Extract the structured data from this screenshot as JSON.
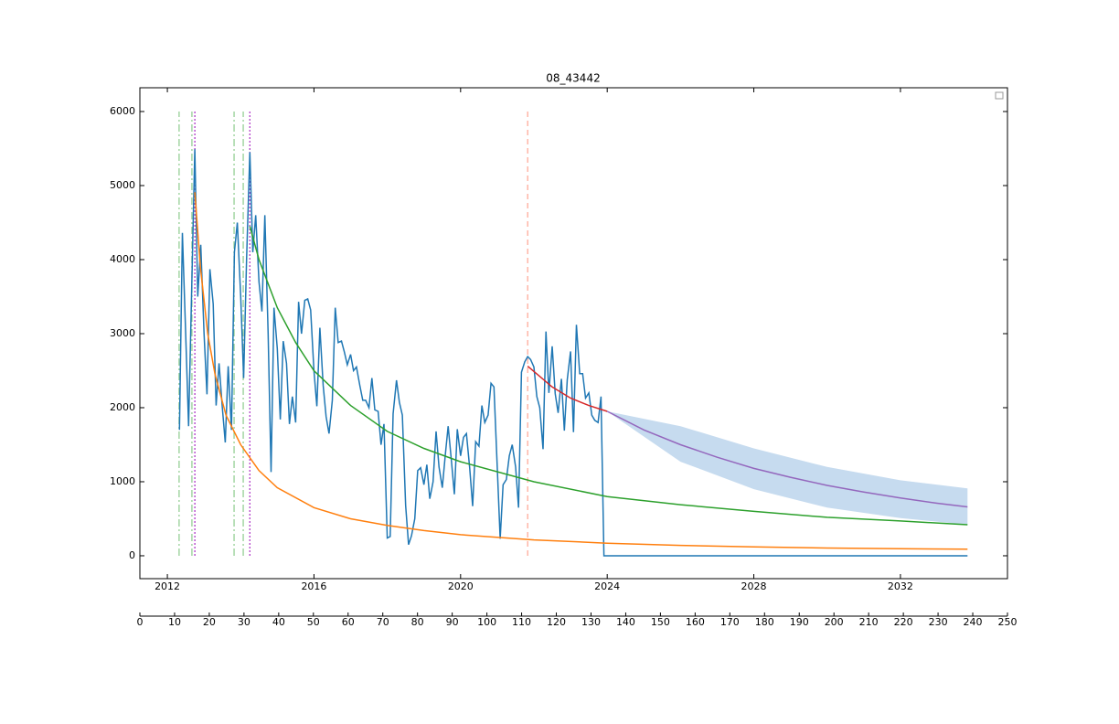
{
  "chart_data": {
    "type": "line",
    "title": "08_43442",
    "xlim": [
      2011.25,
      2034.92
    ],
    "xticks": [
      2012,
      2016,
      2020,
      2024,
      2028,
      2032
    ],
    "ylim": [
      -309,
      6321
    ],
    "yticks": [
      0,
      1000,
      2000,
      3000,
      4000,
      5000,
      6000
    ],
    "x2lim": [
      0,
      250
    ],
    "x2ticks": [
      0,
      10,
      20,
      30,
      40,
      50,
      60,
      70,
      80,
      90,
      100,
      110,
      120,
      130,
      140,
      150,
      160,
      170,
      180,
      190,
      200,
      210,
      220,
      230,
      240,
      250
    ],
    "legend": "upper right",
    "grid": false,
    "series": [
      {
        "color": "#1f77b4",
        "x": [
          2012.33,
          2012.41,
          2012.5,
          2012.58,
          2012.66,
          2012.75,
          2012.83,
          2012.91,
          2013.0,
          2013.08,
          2013.16,
          2013.25,
          2013.33,
          2013.41,
          2013.5,
          2013.58,
          2013.66,
          2013.75,
          2013.83,
          2013.91,
          2014.0,
          2014.08,
          2014.16,
          2014.25,
          2014.33,
          2014.41,
          2014.5,
          2014.58,
          2014.66,
          2014.75,
          2014.83,
          2014.91,
          2015.0,
          2015.08,
          2015.16,
          2015.25,
          2015.33,
          2015.41,
          2015.5,
          2015.58,
          2015.66,
          2015.75,
          2015.83,
          2015.91,
          2016.0,
          2016.08,
          2016.16,
          2016.25,
          2016.33,
          2016.41,
          2016.5,
          2016.58,
          2016.66,
          2016.75,
          2016.83,
          2016.91,
          2017.0,
          2017.08,
          2017.16,
          2017.25,
          2017.33,
          2017.41,
          2017.5,
          2017.58,
          2017.66,
          2017.75,
          2017.83,
          2017.91,
          2018.0,
          2018.08,
          2018.16,
          2018.25,
          2018.33,
          2018.41,
          2018.5,
          2018.58,
          2018.66,
          2018.75,
          2018.83,
          2018.91,
          2019.0,
          2019.08,
          2019.16,
          2019.25,
          2019.33,
          2019.41,
          2019.5,
          2019.58,
          2019.66,
          2019.75,
          2019.83,
          2019.91,
          2020.0,
          2020.08,
          2020.16,
          2020.25,
          2020.33,
          2020.41,
          2020.5,
          2020.58,
          2020.66,
          2020.75,
          2020.83,
          2020.91,
          2021.0,
          2021.08,
          2021.16,
          2021.25,
          2021.33,
          2021.41,
          2021.5,
          2021.58,
          2021.66,
          2021.75,
          2021.83,
          2021.91,
          2022.0,
          2022.08,
          2022.16,
          2022.25,
          2022.33,
          2022.41,
          2022.5,
          2022.58,
          2022.66,
          2022.75,
          2022.83,
          2022.91,
          2023.0,
          2023.08,
          2023.16,
          2023.25,
          2023.33,
          2023.41,
          2023.5,
          2023.58,
          2023.66,
          2023.75,
          2023.83,
          2023.91,
          2033.83
        ],
        "values": [
          1700,
          4360,
          3000,
          1750,
          3500,
          5490,
          3500,
          4200,
          3000,
          2180,
          3870,
          3400,
          2030,
          2600,
          2000,
          1530,
          2560,
          1700,
          4100,
          4500,
          3500,
          2400,
          4000,
          5450,
          4100,
          4600,
          3700,
          3300,
          4600,
          3000,
          1130,
          3350,
          2800,
          1840,
          2900,
          2600,
          1780,
          2150,
          1800,
          3430,
          3000,
          3450,
          3470,
          3320,
          2500,
          2020,
          3080,
          2300,
          1880,
          1650,
          2100,
          3350,
          2880,
          2900,
          2750,
          2580,
          2720,
          2500,
          2550,
          2300,
          2100,
          2100,
          2000,
          2400,
          1970,
          1950,
          1500,
          1780,
          240,
          260,
          1920,
          2370,
          2070,
          1900,
          680,
          150,
          270,
          500,
          1150,
          1190,
          960,
          1230,
          770,
          1000,
          1680,
          1200,
          920,
          1350,
          1750,
          1280,
          830,
          1710,
          1350,
          1600,
          1650,
          1180,
          670,
          1540,
          1480,
          2030,
          1800,
          1900,
          2330,
          2280,
          1200,
          230,
          960,
          1030,
          1350,
          1500,
          1200,
          650,
          2480,
          2620,
          2690,
          2650,
          2550,
          2150,
          2000,
          1440,
          3030,
          2200,
          2830,
          2190,
          1930,
          2390,
          1690,
          2380,
          2760,
          1670,
          3120,
          2460,
          2460,
          2130,
          2200,
          1900,
          1830,
          1800,
          2150,
          0,
          0
        ]
      },
      {
        "color": "#ff7f0e",
        "x": [
          2012.75,
          2012.9,
          2013.1,
          2013.3,
          2013.6,
          2014,
          2014.5,
          2015,
          2016,
          2017,
          2018,
          2019,
          2020,
          2022,
          2024,
          2026,
          2028,
          2030,
          2032,
          2033.83
        ],
        "values": [
          4910,
          3900,
          3000,
          2450,
          1900,
          1500,
          1150,
          920,
          650,
          500,
          410,
          340,
          285,
          215,
          170,
          140,
          120,
          105,
          95,
          90
        ]
      },
      {
        "color": "#2ca02c",
        "x": [
          2014.25,
          2014.5,
          2015,
          2015.5,
          2016,
          2017,
          2018,
          2019,
          2020,
          2022,
          2024,
          2026,
          2028,
          2030,
          2032,
          2033.83
        ],
        "values": [
          4450,
          4000,
          3350,
          2880,
          2500,
          2030,
          1680,
          1450,
          1270,
          1000,
          800,
          690,
          600,
          520,
          470,
          420
        ]
      },
      {
        "color": "#d62728",
        "x": [
          2021.83,
          2022.5,
          2023,
          2023.5,
          2024
        ],
        "values": [
          2560,
          2280,
          2130,
          2030,
          1950
        ]
      },
      {
        "color": "#9467bd",
        "x": [
          2024,
          2025,
          2026,
          2027,
          2028,
          2029,
          2030,
          2031,
          2032,
          2033,
          2033.83
        ],
        "values": [
          1950,
          1700,
          1500,
          1330,
          1180,
          1060,
          950,
          860,
          780,
          710,
          660
        ]
      }
    ],
    "bands": [
      {
        "color": "#c6dbef",
        "x": [
          2024,
          2026,
          2028,
          2030,
          2032,
          2033.83
        ],
        "upper": [
          1950,
          1750,
          1450,
          1200,
          1020,
          910
        ],
        "lower": [
          1950,
          1270,
          900,
          650,
          510,
          420
        ]
      }
    ],
    "vline_span": [
      0,
      6000
    ],
    "vlines": [
      {
        "x": 2012.32,
        "color": "#95cf95",
        "style": "dashdot"
      },
      {
        "x": 2012.67,
        "color": "#95cf95",
        "style": "dashdot"
      },
      {
        "x": 2012.75,
        "color": "#b03cc8",
        "style": "dotted"
      },
      {
        "x": 2013.82,
        "color": "#95cf95",
        "style": "dashdot"
      },
      {
        "x": 2014.07,
        "color": "#95cf95",
        "style": "dashdot"
      },
      {
        "x": 2014.25,
        "color": "#b03cc8",
        "style": "dotted"
      },
      {
        "x": 2021.83,
        "color": "#ffaa9a",
        "style": "dashed"
      }
    ]
  }
}
